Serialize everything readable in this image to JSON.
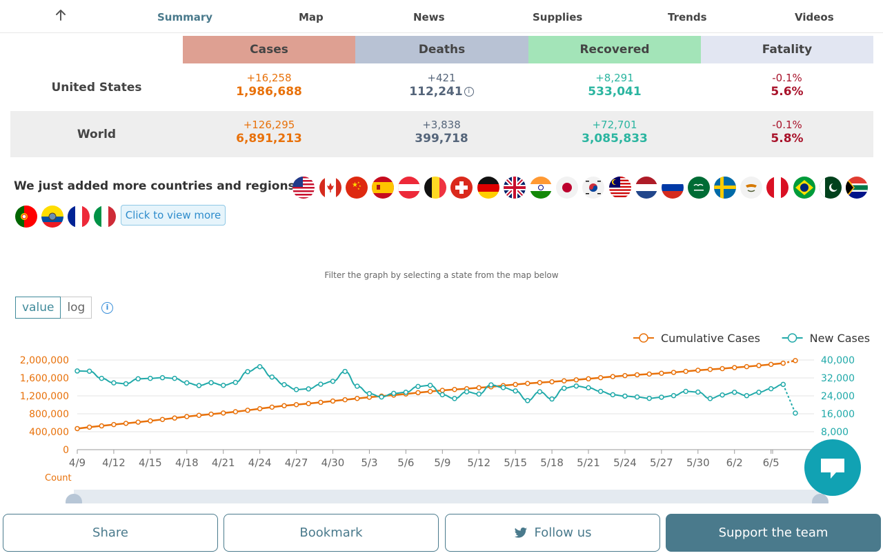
{
  "nav": {
    "back_icon": "arrow-up-icon",
    "items": [
      "Summary",
      "Map",
      "News",
      "Supplies",
      "Trends",
      "Videos"
    ],
    "active": "Summary"
  },
  "stats": {
    "headers": [
      "Cases",
      "Deaths",
      "Recovered",
      "Fatality"
    ],
    "header_colors": [
      "#dea092",
      "#b8c2d4",
      "#a3e4b8",
      "#e2e6f2"
    ],
    "rows": [
      {
        "label": "United States",
        "cases": {
          "delta": "+16,258",
          "total": "1,986,688"
        },
        "deaths": {
          "delta": "+421",
          "total": "112,241"
        },
        "recovered": {
          "delta": "+8,291",
          "total": "533,041"
        },
        "fatality": {
          "delta": "-0.1%",
          "total": "5.6%"
        }
      },
      {
        "label": "World",
        "cases": {
          "delta": "+126,295",
          "total": "6,891,213"
        },
        "deaths": {
          "delta": "+3,838",
          "total": "399,718"
        },
        "recovered": {
          "delta": "+72,701",
          "total": "3,085,833"
        },
        "fatality": {
          "delta": "-0.1%",
          "total": "5.8%"
        }
      }
    ],
    "deaths_info_icon": "info-icon"
  },
  "countries": {
    "heading": "We just added more countries and regions!",
    "flags": [
      "us-flag-icon",
      "canada-flag-icon",
      "china-flag-icon",
      "spain-flag-icon",
      "austria-flag-icon",
      "belgium-flag-icon",
      "switzerland-flag-icon",
      "germany-flag-icon",
      "uk-flag-icon",
      "india-flag-icon",
      "japan-flag-icon",
      "south-korea-flag-icon",
      "malaysia-flag-icon",
      "netherlands-flag-icon",
      "russia-flag-icon",
      "saudi-arabia-flag-icon",
      "sweden-flag-icon",
      "cyprus-flag-icon",
      "peru-flag-icon",
      "brazil-flag-icon",
      "pakistan-flag-icon",
      "south-africa-flag-icon",
      "portugal-flag-icon",
      "ecuador-flag-icon",
      "france-flag-icon",
      "italy-flag-icon"
    ],
    "view_more": "Click to view more"
  },
  "filter_text": "Filter the graph by selecting a state from the map below",
  "toggle": {
    "value": "value",
    "log": "log",
    "selected": "value"
  },
  "chart_data": {
    "type": "line",
    "x": [
      "4/9",
      "4/10",
      "4/11",
      "4/12",
      "4/13",
      "4/14",
      "4/15",
      "4/16",
      "4/17",
      "4/18",
      "4/19",
      "4/20",
      "4/21",
      "4/22",
      "4/23",
      "4/24",
      "4/25",
      "4/26",
      "4/27",
      "4/28",
      "4/29",
      "4/30",
      "5/1",
      "5/2",
      "5/3",
      "5/4",
      "5/5",
      "5/6",
      "5/7",
      "5/8",
      "5/9",
      "5/10",
      "5/11",
      "5/12",
      "5/13",
      "5/14",
      "5/15",
      "5/16",
      "5/17",
      "5/18",
      "5/19",
      "5/20",
      "5/21",
      "5/22",
      "5/23",
      "5/24",
      "5/25",
      "5/26",
      "5/27",
      "5/28",
      "5/29",
      "5/30",
      "5/31",
      "6/1",
      "6/2",
      "6/3",
      "6/4",
      "6/5",
      "6/6",
      "6/7"
    ],
    "xticks": [
      "4/9",
      "4/12",
      "4/15",
      "4/18",
      "4/21",
      "4/24",
      "4/27",
      "4/30",
      "5/3",
      "5/6",
      "5/9",
      "5/12",
      "5/15",
      "5/18",
      "5/21",
      "5/24",
      "5/27",
      "5/30",
      "6/2",
      "6/5"
    ],
    "series": [
      {
        "name": "Cumulative Cases",
        "axis": "left",
        "color": "#e8710a",
        "values": [
          470000,
          502000,
          530000,
          560000,
          587000,
          614000,
          643000,
          674000,
          705000,
          738000,
          765000,
          792000,
          818000,
          846000,
          878000,
          914000,
          948000,
          980000,
          1004000,
          1028000,
          1055000,
          1084000,
          1113000,
          1142000,
          1169000,
          1194000,
          1218000,
          1243000,
          1272000,
          1298000,
          1323000,
          1342000,
          1360000,
          1381000,
          1402000,
          1428000,
          1453000,
          1477000,
          1496000,
          1514000,
          1535000,
          1557000,
          1580000,
          1606000,
          1630000,
          1652000,
          1670000,
          1686000,
          1704000,
          1724000,
          1746000,
          1771000,
          1790000,
          1808000,
          1830000,
          1852000,
          1876000,
          1902000,
          1928000,
          1986688
        ]
      },
      {
        "name": "New Cases",
        "axis": "right",
        "color": "#20a9a9",
        "values": [
          35100,
          35000,
          31800,
          29800,
          29400,
          31600,
          31800,
          32100,
          31800,
          29800,
          28600,
          29900,
          28700,
          30000,
          34800,
          37000,
          32400,
          29000,
          26800,
          27100,
          29200,
          30500,
          34900,
          28300,
          25000,
          23500,
          25100,
          25600,
          28200,
          28700,
          24500,
          22800,
          25800,
          24800,
          28900,
          27700,
          26200,
          21900,
          25800,
          22600,
          27400,
          28400,
          27600,
          26000,
          24500,
          23900,
          23500,
          22900,
          23400,
          24100,
          26000,
          25700,
          22800,
          24400,
          25600,
          24100,
          25600,
          27200,
          29100,
          16300
        ]
      }
    ],
    "left_axis": {
      "ticks": [
        "0",
        "400,000",
        "800,000",
        "1,200,000",
        "1,600,000",
        "2,000,000"
      ],
      "ylim": [
        0,
        2000000
      ],
      "label": "Count"
    },
    "right_axis": {
      "ticks": [
        "8,000",
        "16,000",
        "24,000",
        "32,000",
        "40,000"
      ],
      "ylim": [
        0,
        40000
      ]
    },
    "legend_position": "top-right",
    "grid": true
  },
  "chat_icon": "chat-bubble-icon",
  "bottom_bar": {
    "share": "Share",
    "bookmark": "Bookmark",
    "follow": "Follow us",
    "follow_icon": "twitter-icon",
    "support": "Support the team"
  }
}
